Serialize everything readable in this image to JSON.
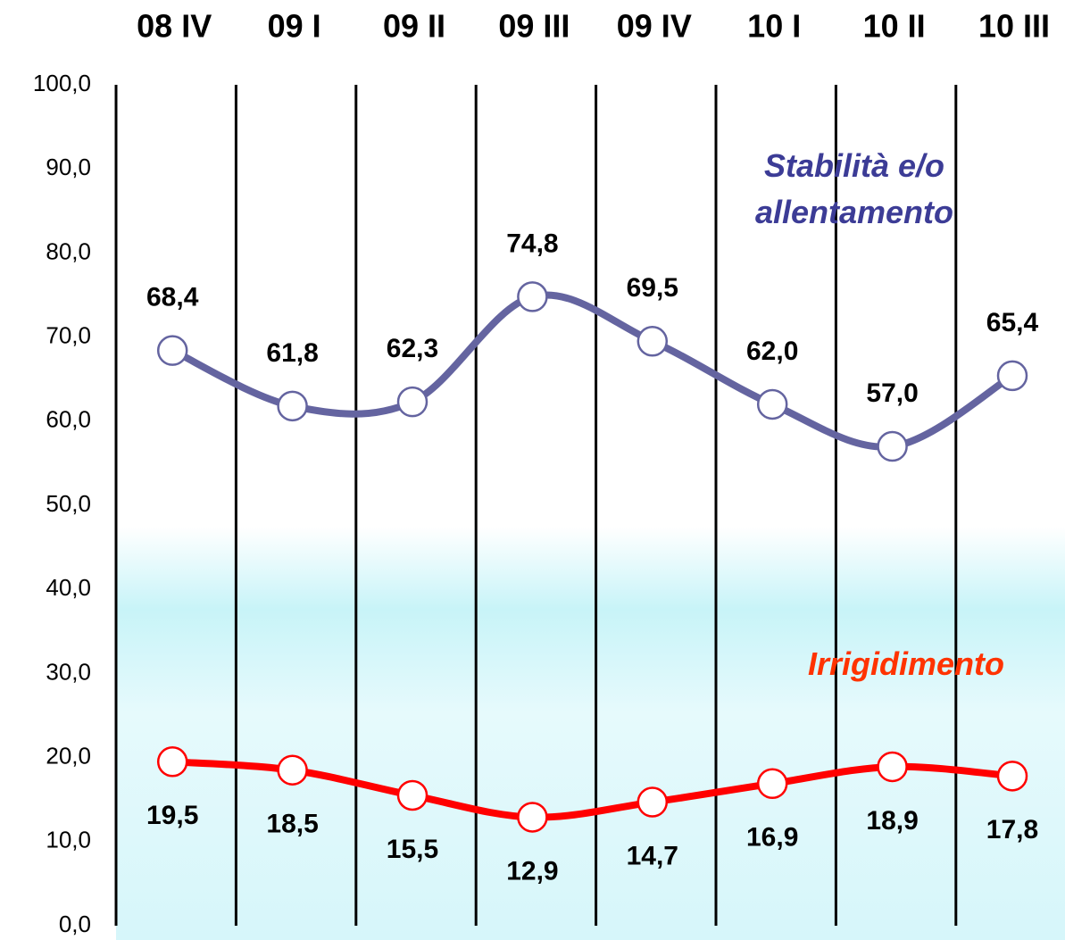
{
  "chart_data": {
    "type": "line",
    "categories": [
      "08 IV",
      "09 I",
      "09 II",
      "09 III",
      "09 IV",
      "10 I",
      "10 II",
      "10 III"
    ],
    "series": [
      {
        "name": "Stabilità e/o allentamento",
        "color": "#6464a0",
        "label_color": "#3c3c96",
        "values": [
          68.4,
          61.8,
          62.3,
          74.8,
          69.5,
          62.0,
          57.0,
          65.4
        ],
        "value_labels": [
          "68,4",
          "61,8",
          "62,3",
          "74,8",
          "69,5",
          "62,0",
          "57,0",
          "65,4"
        ]
      },
      {
        "name": "Irrigidimento",
        "color": "#ff0000",
        "label_color": "#ff3300",
        "values": [
          19.5,
          18.5,
          15.5,
          12.9,
          14.7,
          16.9,
          18.9,
          17.8
        ],
        "value_labels": [
          "19,5",
          "18,5",
          "15,5",
          "12,9",
          "14,7",
          "16,9",
          "18,9",
          "17,8"
        ]
      }
    ],
    "ylim": [
      0,
      100
    ],
    "yticks": [
      {
        "value": 0,
        "label": "0,0"
      },
      {
        "value": 10,
        "label": "10,0"
      },
      {
        "value": 20,
        "label": "20,0"
      },
      {
        "value": 30,
        "label": "30,0"
      },
      {
        "value": 40,
        "label": "40,0"
      },
      {
        "value": 50,
        "label": "50,0"
      },
      {
        "value": 60,
        "label": "60,0"
      },
      {
        "value": 70,
        "label": "70,0"
      },
      {
        "value": 80,
        "label": "80,0"
      },
      {
        "value": 90,
        "label": "90,0"
      },
      {
        "value": 100,
        "label": "100,0"
      }
    ],
    "grid": false
  }
}
